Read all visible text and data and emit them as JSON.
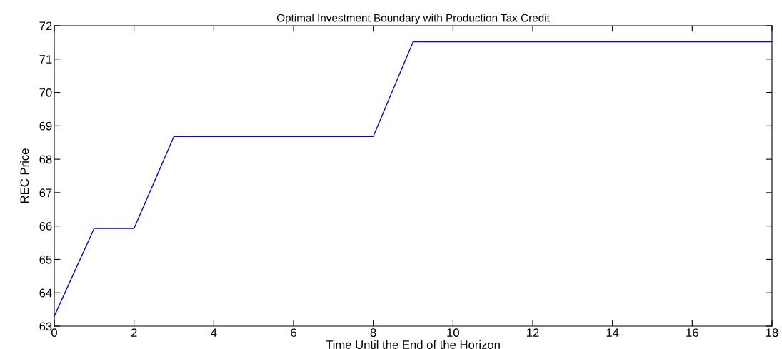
{
  "chart_data": {
    "type": "line",
    "title": "Optimal Investment Boundary with Production Tax Credit",
    "xlabel": "Time Until the End of the Horizon",
    "ylabel": "REC Price",
    "series": [
      {
        "color": "#0000ff",
        "x": [
          0,
          1,
          2,
          3,
          8,
          9,
          18
        ],
        "values": [
          63.3,
          65.93,
          65.93,
          68.68,
          68.68,
          71.52,
          71.52
        ]
      }
    ],
    "xlim": [
      0,
      18
    ],
    "xticks": [
      0,
      2,
      4,
      6,
      8,
      10,
      12,
      14,
      16,
      18
    ],
    "ylim": [
      63,
      72
    ],
    "yticks": [
      63,
      64,
      65,
      66,
      67,
      68,
      69,
      70,
      71,
      72
    ],
    "grid": false
  }
}
